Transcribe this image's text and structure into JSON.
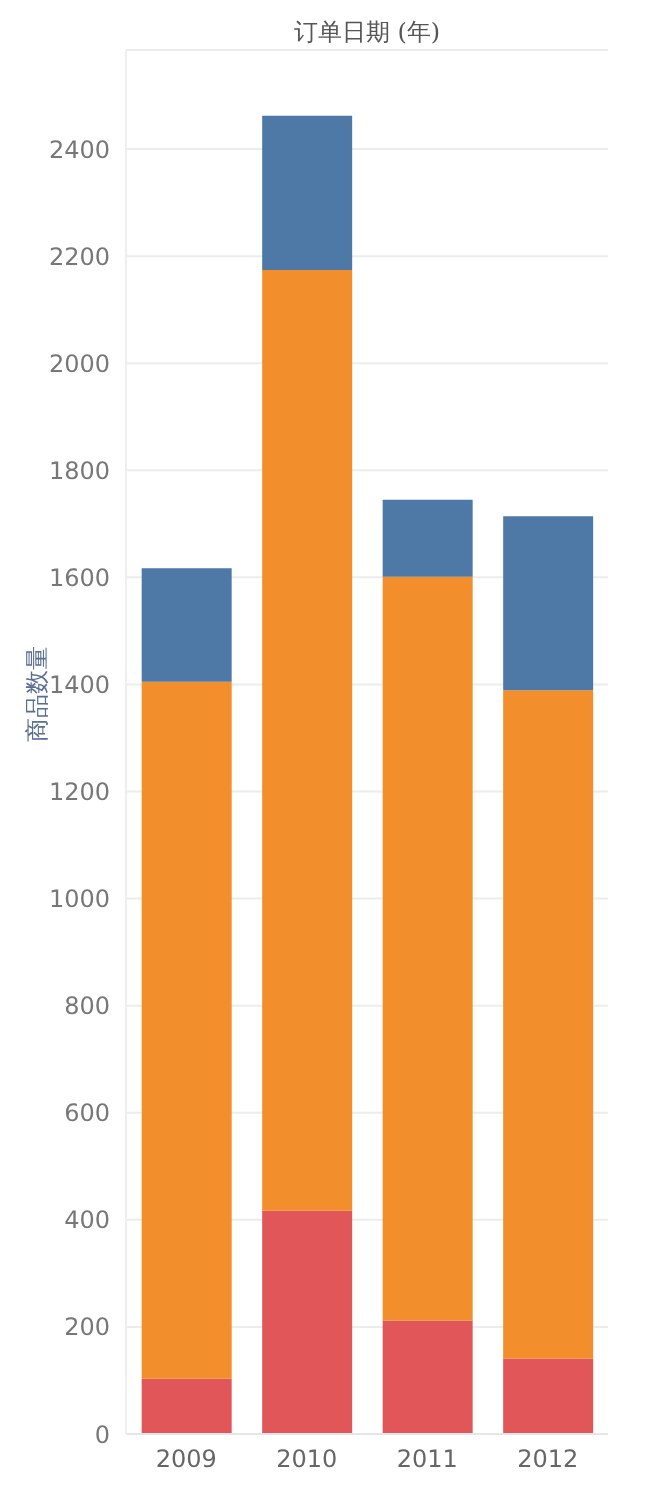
{
  "chart_data": {
    "type": "bar",
    "xlabel": "订单日期 (年)",
    "ylabel": "商品数量",
    "categories": [
      "2009",
      "2010",
      "2011",
      "2012"
    ],
    "stacked": true,
    "series": [
      {
        "color": "#e15759",
        "values": [
          103,
          417,
          212,
          141
        ]
      },
      {
        "color": "#f28e2b",
        "values": [
          1302,
          1757,
          1389,
          1248
        ]
      },
      {
        "color": "#4e79a7",
        "values": [
          212,
          288,
          144,
          325
        ]
      }
    ],
    "ylim": [
      0,
      2585
    ],
    "yticks": [
      0,
      200,
      400,
      600,
      800,
      1000,
      1200,
      1400,
      1600,
      1800,
      2000,
      2200,
      2400
    ],
    "grid": "y",
    "legend": false
  }
}
